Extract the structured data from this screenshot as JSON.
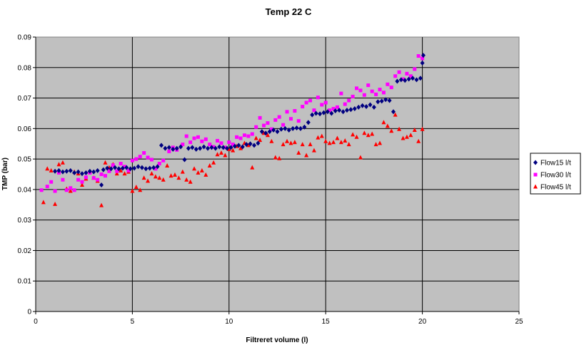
{
  "chart_data": {
    "type": "scatter",
    "title": "Temp 22 C",
    "xlabel": "Filtreret volume (l)",
    "ylabel": "TMP (bar)",
    "xlim": [
      0,
      25
    ],
    "ylim": [
      0,
      0.09
    ],
    "x_ticks": [
      "0",
      "5",
      "10",
      "15",
      "20",
      "25"
    ],
    "y_ticks": [
      "0",
      "0.01",
      "0.02",
      "0.03",
      "0.04",
      "0.05",
      "0.06",
      "0.07",
      "0.08",
      "0.09"
    ],
    "grid": true,
    "legend_position": "right",
    "plot_background": "#c0c0c0",
    "series": [
      {
        "name": "Flow15 l/t",
        "color": "#000080",
        "marker": "diamond",
        "points": [
          [
            1.0,
            0.046
          ],
          [
            1.2,
            0.0462
          ],
          [
            1.4,
            0.0458
          ],
          [
            1.6,
            0.046
          ],
          [
            1.8,
            0.0462
          ],
          [
            2.0,
            0.0455
          ],
          [
            2.2,
            0.0458
          ],
          [
            2.4,
            0.0452
          ],
          [
            2.6,
            0.0455
          ],
          [
            2.8,
            0.046
          ],
          [
            3.0,
            0.0458
          ],
          [
            3.2,
            0.0462
          ],
          [
            3.4,
            0.0415
          ],
          [
            3.5,
            0.0465
          ],
          [
            3.7,
            0.047
          ],
          [
            3.9,
            0.0468
          ],
          [
            4.1,
            0.0472
          ],
          [
            4.3,
            0.0468
          ],
          [
            4.5,
            0.047
          ],
          [
            4.7,
            0.0472
          ],
          [
            4.9,
            0.0468
          ],
          [
            5.1,
            0.047
          ],
          [
            5.3,
            0.0475
          ],
          [
            5.5,
            0.0472
          ],
          [
            5.7,
            0.0468
          ],
          [
            5.9,
            0.047
          ],
          [
            6.1,
            0.0472
          ],
          [
            6.3,
            0.0475
          ],
          [
            6.5,
            0.0545
          ],
          [
            6.7,
            0.0535
          ],
          [
            6.9,
            0.0538
          ],
          [
            7.1,
            0.0532
          ],
          [
            7.3,
            0.0535
          ],
          [
            7.5,
            0.054
          ],
          [
            7.7,
            0.0498
          ],
          [
            7.9,
            0.0535
          ],
          [
            8.1,
            0.0538
          ],
          [
            8.3,
            0.0532
          ],
          [
            8.5,
            0.0535
          ],
          [
            8.7,
            0.054
          ],
          [
            8.9,
            0.0535
          ],
          [
            9.1,
            0.0538
          ],
          [
            9.3,
            0.0535
          ],
          [
            9.5,
            0.054
          ],
          [
            9.7,
            0.0538
          ],
          [
            9.9,
            0.0535
          ],
          [
            10.1,
            0.0538
          ],
          [
            10.3,
            0.0542
          ],
          [
            10.5,
            0.0545
          ],
          [
            10.7,
            0.054
          ],
          [
            10.9,
            0.0548
          ],
          [
            11.1,
            0.055
          ],
          [
            11.3,
            0.0545
          ],
          [
            11.5,
            0.0552
          ],
          [
            11.7,
            0.059
          ],
          [
            11.9,
            0.0585
          ],
          [
            12.1,
            0.059
          ],
          [
            12.3,
            0.0595
          ],
          [
            12.5,
            0.059
          ],
          [
            12.7,
            0.0598
          ],
          [
            12.9,
            0.06
          ],
          [
            13.1,
            0.0595
          ],
          [
            13.3,
            0.06
          ],
          [
            13.5,
            0.0602
          ],
          [
            13.7,
            0.06
          ],
          [
            13.9,
            0.0605
          ],
          [
            14.1,
            0.062
          ],
          [
            14.3,
            0.0645
          ],
          [
            14.5,
            0.065
          ],
          [
            14.7,
            0.0648
          ],
          [
            14.9,
            0.0652
          ],
          [
            15.1,
            0.0655
          ],
          [
            15.3,
            0.065
          ],
          [
            15.5,
            0.0658
          ],
          [
            15.7,
            0.066
          ],
          [
            15.9,
            0.0655
          ],
          [
            16.1,
            0.066
          ],
          [
            16.3,
            0.0662
          ],
          [
            16.5,
            0.0665
          ],
          [
            16.7,
            0.067
          ],
          [
            16.9,
            0.0675
          ],
          [
            17.1,
            0.0672
          ],
          [
            17.3,
            0.0678
          ],
          [
            17.5,
            0.067
          ],
          [
            17.7,
            0.0688
          ],
          [
            17.9,
            0.069
          ],
          [
            18.1,
            0.0695
          ],
          [
            18.3,
            0.0692
          ],
          [
            18.5,
            0.0655
          ],
          [
            18.7,
            0.0755
          ],
          [
            18.9,
            0.076
          ],
          [
            19.1,
            0.0758
          ],
          [
            19.3,
            0.0762
          ],
          [
            19.5,
            0.0765
          ],
          [
            19.7,
            0.076
          ],
          [
            19.9,
            0.0765
          ],
          [
            20.0,
            0.0815
          ],
          [
            20.05,
            0.084
          ]
        ]
      },
      {
        "name": "Flow30 l/t",
        "color": "#ff00ff",
        "marker": "square",
        "points": [
          [
            0.3,
            0.0398
          ],
          [
            0.6,
            0.041
          ],
          [
            0.8,
            0.0425
          ],
          [
            1.0,
            0.0395
          ],
          [
            1.2,
            0.0455
          ],
          [
            1.4,
            0.0432
          ],
          [
            1.6,
            0.0398
          ],
          [
            1.8,
            0.0405
          ],
          [
            2.0,
            0.0398
          ],
          [
            2.2,
            0.0432
          ],
          [
            2.4,
            0.0425
          ],
          [
            2.6,
            0.044
          ],
          [
            2.8,
            0.0455
          ],
          [
            3.0,
            0.0438
          ],
          [
            3.2,
            0.0432
          ],
          [
            3.4,
            0.045
          ],
          [
            3.6,
            0.0445
          ],
          [
            3.8,
            0.046
          ],
          [
            4.0,
            0.048
          ],
          [
            4.2,
            0.046
          ],
          [
            4.4,
            0.0485
          ],
          [
            4.6,
            0.0475
          ],
          [
            4.8,
            0.0462
          ],
          [
            5.0,
            0.0495
          ],
          [
            5.2,
            0.05
          ],
          [
            5.4,
            0.0508
          ],
          [
            5.6,
            0.052
          ],
          [
            5.8,
            0.0505
          ],
          [
            6.0,
            0.0498
          ],
          [
            6.2,
            0.0468
          ],
          [
            6.4,
            0.0485
          ],
          [
            6.6,
            0.0495
          ],
          [
            6.9,
            0.0525
          ],
          [
            7.1,
            0.0538
          ],
          [
            7.3,
            0.053
          ],
          [
            7.6,
            0.0548
          ],
          [
            7.8,
            0.0575
          ],
          [
            8.0,
            0.0555
          ],
          [
            8.2,
            0.0568
          ],
          [
            8.4,
            0.0572
          ],
          [
            8.6,
            0.0558
          ],
          [
            8.8,
            0.0565
          ],
          [
            9.0,
            0.0548
          ],
          [
            9.2,
            0.054
          ],
          [
            9.4,
            0.056
          ],
          [
            9.6,
            0.0552
          ],
          [
            9.8,
            0.0538
          ],
          [
            10.0,
            0.0555
          ],
          [
            10.2,
            0.0548
          ],
          [
            10.4,
            0.0572
          ],
          [
            10.6,
            0.0568
          ],
          [
            10.8,
            0.0578
          ],
          [
            11.0,
            0.0575
          ],
          [
            11.2,
            0.0582
          ],
          [
            11.4,
            0.0605
          ],
          [
            11.6,
            0.0635
          ],
          [
            11.8,
            0.061
          ],
          [
            12.0,
            0.0618
          ],
          [
            12.2,
            0.0598
          ],
          [
            12.4,
            0.0628
          ],
          [
            12.6,
            0.0638
          ],
          [
            12.8,
            0.0612
          ],
          [
            13.0,
            0.0655
          ],
          [
            13.2,
            0.0632
          ],
          [
            13.4,
            0.0658
          ],
          [
            13.6,
            0.0625
          ],
          [
            13.8,
            0.0672
          ],
          [
            14.0,
            0.0685
          ],
          [
            14.2,
            0.0692
          ],
          [
            14.4,
            0.066
          ],
          [
            14.6,
            0.0702
          ],
          [
            14.8,
            0.0678
          ],
          [
            15.0,
            0.0685
          ],
          [
            15.2,
            0.066
          ],
          [
            15.4,
            0.0665
          ],
          [
            15.6,
            0.067
          ],
          [
            15.8,
            0.0715
          ],
          [
            16.0,
            0.068
          ],
          [
            16.2,
            0.0692
          ],
          [
            16.4,
            0.0705
          ],
          [
            16.6,
            0.0732
          ],
          [
            16.8,
            0.0725
          ],
          [
            17.0,
            0.071
          ],
          [
            17.2,
            0.0742
          ],
          [
            17.4,
            0.0722
          ],
          [
            17.6,
            0.0712
          ],
          [
            17.8,
            0.0728
          ],
          [
            18.0,
            0.0718
          ],
          [
            18.2,
            0.0745
          ],
          [
            18.4,
            0.0735
          ],
          [
            18.6,
            0.0772
          ],
          [
            18.8,
            0.0785
          ],
          [
            19.0,
            0.0762
          ],
          [
            19.2,
            0.078
          ],
          [
            19.4,
            0.0772
          ],
          [
            19.6,
            0.0795
          ],
          [
            19.8,
            0.0838
          ],
          [
            20.0,
            0.083
          ]
        ]
      },
      {
        "name": "Flow45 l/t",
        "color": "#ff0000",
        "marker": "triangle",
        "points": [
          [
            0.4,
            0.0358
          ],
          [
            0.6,
            0.0468
          ],
          [
            0.8,
            0.0462
          ],
          [
            1.0,
            0.0352
          ],
          [
            1.2,
            0.0482
          ],
          [
            1.4,
            0.0488
          ],
          [
            1.6,
            0.0402
          ],
          [
            1.8,
            0.0395
          ],
          [
            2.0,
            0.0458
          ],
          [
            2.2,
            0.0452
          ],
          [
            2.4,
            0.0415
          ],
          [
            2.6,
            0.0435
          ],
          [
            2.8,
            0.046
          ],
          [
            3.0,
            0.0438
          ],
          [
            3.2,
            0.0428
          ],
          [
            3.4,
            0.0348
          ],
          [
            3.6,
            0.0488
          ],
          [
            3.8,
            0.0472
          ],
          [
            4.0,
            0.0482
          ],
          [
            4.2,
            0.0452
          ],
          [
            4.4,
            0.0462
          ],
          [
            4.6,
            0.0452
          ],
          [
            4.8,
            0.0458
          ],
          [
            5.0,
            0.0395
          ],
          [
            5.2,
            0.0408
          ],
          [
            5.4,
            0.0398
          ],
          [
            5.6,
            0.0438
          ],
          [
            5.8,
            0.0428
          ],
          [
            6.0,
            0.0452
          ],
          [
            6.2,
            0.0442
          ],
          [
            6.4,
            0.0438
          ],
          [
            6.6,
            0.0432
          ],
          [
            6.8,
            0.0478
          ],
          [
            7.0,
            0.0445
          ],
          [
            7.2,
            0.0448
          ],
          [
            7.4,
            0.0438
          ],
          [
            7.6,
            0.0458
          ],
          [
            7.8,
            0.0432
          ],
          [
            8.0,
            0.0425
          ],
          [
            8.2,
            0.0468
          ],
          [
            8.4,
            0.0455
          ],
          [
            8.6,
            0.0462
          ],
          [
            8.8,
            0.0448
          ],
          [
            9.0,
            0.0478
          ],
          [
            9.2,
            0.0488
          ],
          [
            9.4,
            0.0515
          ],
          [
            9.6,
            0.052
          ],
          [
            9.8,
            0.0512
          ],
          [
            10.0,
            0.0532
          ],
          [
            10.2,
            0.0528
          ],
          [
            10.4,
            0.0542
          ],
          [
            10.6,
            0.0535
          ],
          [
            10.8,
            0.0552
          ],
          [
            11.0,
            0.0545
          ],
          [
            11.2,
            0.0472
          ],
          [
            11.4,
            0.0568
          ],
          [
            11.6,
            0.0562
          ],
          [
            11.8,
            0.0585
          ],
          [
            12.0,
            0.0578
          ],
          [
            12.2,
            0.0558
          ],
          [
            12.4,
            0.0505
          ],
          [
            12.6,
            0.0502
          ],
          [
            12.8,
            0.0548
          ],
          [
            13.0,
            0.0558
          ],
          [
            13.2,
            0.0552
          ],
          [
            13.4,
            0.0555
          ],
          [
            13.6,
            0.052
          ],
          [
            13.8,
            0.0548
          ],
          [
            14.0,
            0.0512
          ],
          [
            14.2,
            0.0548
          ],
          [
            14.4,
            0.0528
          ],
          [
            14.6,
            0.057
          ],
          [
            14.8,
            0.0575
          ],
          [
            15.0,
            0.0558
          ],
          [
            15.2,
            0.0552
          ],
          [
            15.4,
            0.0555
          ],
          [
            15.6,
            0.0568
          ],
          [
            15.8,
            0.0555
          ],
          [
            16.0,
            0.056
          ],
          [
            16.2,
            0.0548
          ],
          [
            16.4,
            0.058
          ],
          [
            16.6,
            0.0572
          ],
          [
            16.8,
            0.0505
          ],
          [
            17.0,
            0.0585
          ],
          [
            17.2,
            0.0578
          ],
          [
            17.4,
            0.0582
          ],
          [
            17.6,
            0.0548
          ],
          [
            17.8,
            0.0552
          ],
          [
            18.0,
            0.062
          ],
          [
            18.2,
            0.0608
          ],
          [
            18.4,
            0.0592
          ],
          [
            18.6,
            0.0645
          ],
          [
            18.8,
            0.0598
          ],
          [
            19.0,
            0.0568
          ],
          [
            19.2,
            0.0572
          ],
          [
            19.4,
            0.0578
          ],
          [
            19.6,
            0.0595
          ],
          [
            19.8,
            0.0558
          ],
          [
            20.0,
            0.0598
          ]
        ]
      }
    ]
  }
}
